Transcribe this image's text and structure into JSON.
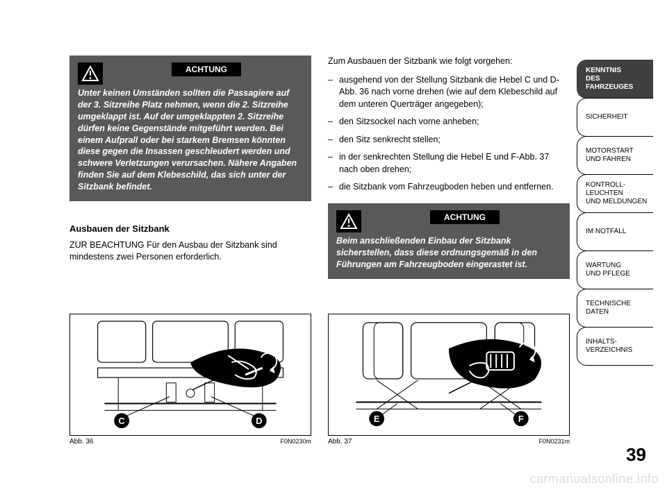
{
  "page_number": "39",
  "watermark": "carmanualsonline.info",
  "sidebar": {
    "tabs": [
      {
        "label": "KENNTNIS\nDES FAHRZEUGES",
        "active": true
      },
      {
        "label": "SICHERHEIT",
        "active": false
      },
      {
        "label": "MOTORSTART\nUND FAHREN",
        "active": false
      },
      {
        "label": "KONTROLL-\nLEUCHTEN\nUND MELDUNGEN",
        "active": false
      },
      {
        "label": "IM NOTFALL",
        "active": false
      },
      {
        "label": "WARTUNG\nUND PFLEGE",
        "active": false
      },
      {
        "label": "TECHNISCHE\nDATEN",
        "active": false
      },
      {
        "label": "INHALTS-\nVERZEICHNIS",
        "active": false
      }
    ]
  },
  "left_col": {
    "warning": {
      "title": "ACHTUNG",
      "text": "Unter keinen Umständen sollten die Passagiere auf der 3. Sitzreihe Platz nehmen, wenn die 2. Sitzreihe umgeklappt ist. Auf der umgeklappten 2. Sitzreihe dürfen keine Gegenstände mitgeführt werden. Bei einem Aufprall oder bei starkem Bremsen könnten diese gegen die Insassen geschleudert werden und schwere Verletzungen verursachen. Nähere Angaben finden Sie auf dem Klebeschild, das sich unter der Sitzbank befindet."
    },
    "subhead": "Ausbauen der Sitzbank",
    "body": "ZUR BEACHTUNG Für den Ausbau der Sitzbank sind mindestens zwei Personen erforderlich."
  },
  "right_col": {
    "intro": "Zum Ausbauen der Sitzbank wie folgt vorgehen:",
    "bullets": [
      "ausgehend von der Stellung Sitzbank die Hebel C und D-Abb. 36 nach vorne drehen (wie auf dem Klebeschild auf dem unteren Querträger angegeben);",
      "den Sitzsockel nach vorne anheben;",
      "den Sitz senkrecht stellen;",
      "in der senkrechten Stellung die Hebel E und F-Abb. 37 nach oben drehen;",
      "die Sitzbank vom Fahrzeugboden heben und entfernen."
    ],
    "warning": {
      "title": "ACHTUNG",
      "text": "Beim anschließenden Einbau der Sitzbank sicherstellen, dass diese ordnungsgemäß in den Führungen am Fahrzeugboden eingerastet ist."
    }
  },
  "figures": {
    "left": {
      "caption": "Abb. 36",
      "code": "F0N0230m",
      "labels": {
        "left": "C",
        "right": "D"
      }
    },
    "right": {
      "caption": "Abb. 37",
      "code": "F0N0231m",
      "labels": {
        "left": "E",
        "right": "F"
      }
    }
  },
  "colors": {
    "warning_bg": "#58595b",
    "warning_title_bg": "#000000",
    "tab_active_bg": "#404040",
    "text": "#000000",
    "watermark": "#dddddd"
  }
}
